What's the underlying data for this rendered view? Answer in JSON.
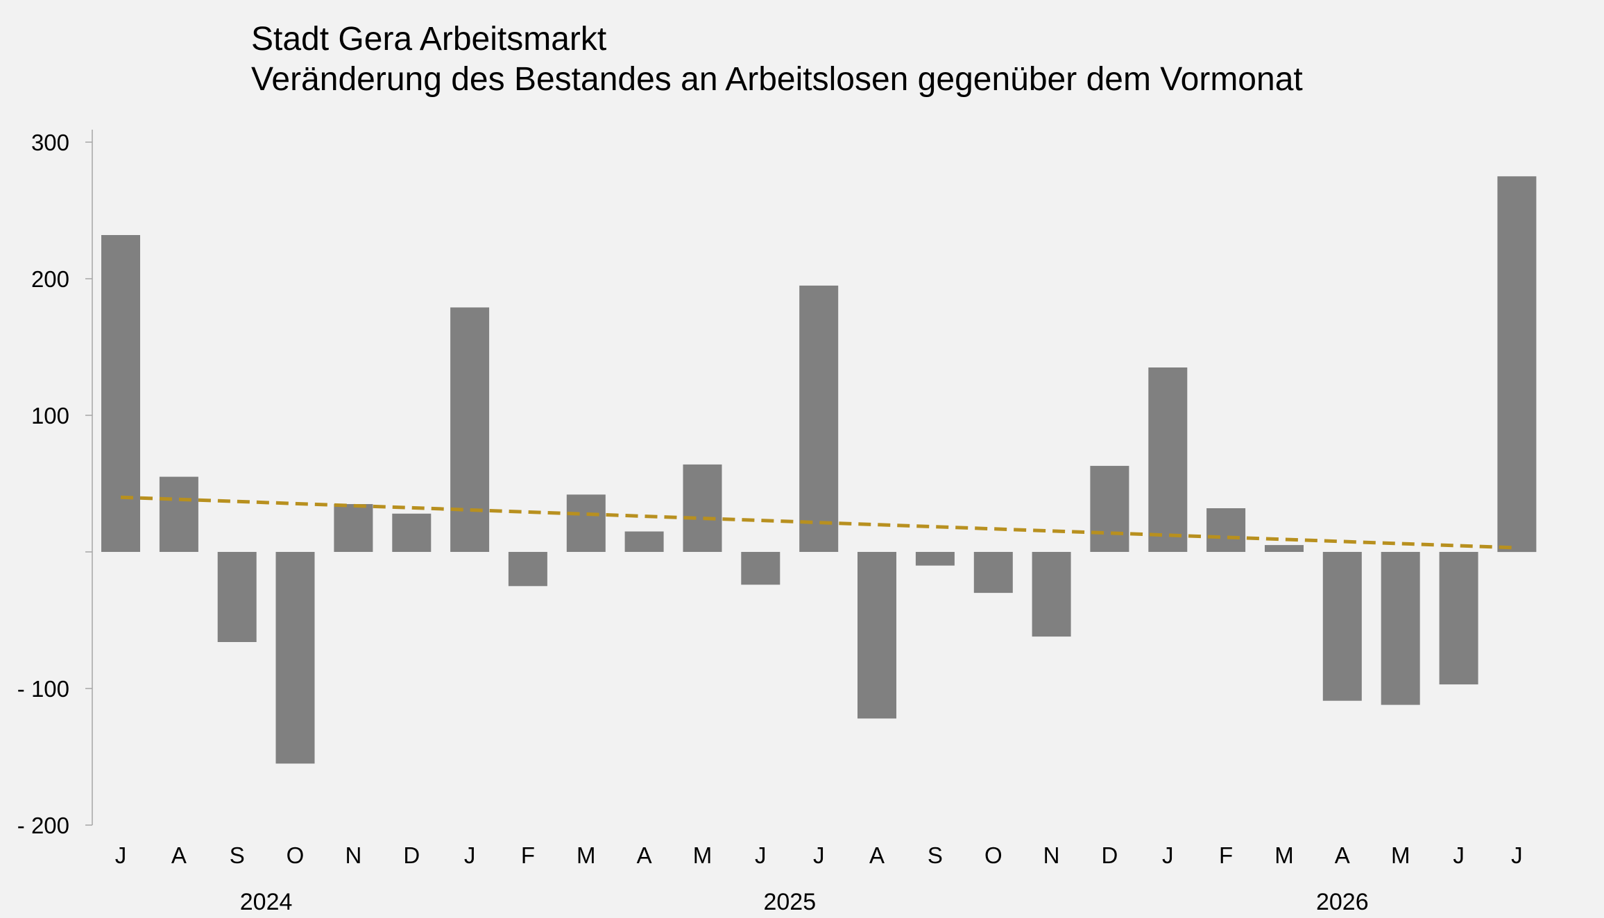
{
  "chart_data": {
    "type": "bar",
    "title": "Stadt Gera Arbeitsmarkt",
    "subtitle": "Veränderung des Bestandes an Arbeitslosen gegenüber dem Vormonat",
    "categories": [
      "J",
      "A",
      "S",
      "O",
      "N",
      "D",
      "J",
      "F",
      "M",
      "A",
      "M",
      "J",
      "J",
      "A",
      "S",
      "O",
      "N",
      "D",
      "J",
      "F",
      "M",
      "A",
      "M",
      "J",
      "J"
    ],
    "year_labels": [
      {
        "label": "2024",
        "from": 0,
        "to": 5
      },
      {
        "label": "2025",
        "from": 6,
        "to": 17
      },
      {
        "label": "2026",
        "from": 18,
        "to": 24
      }
    ],
    "series": [
      {
        "values": [
          232,
          55,
          -66,
          -155,
          35,
          28,
          179,
          -25,
          42,
          15,
          64,
          -24,
          195,
          -122,
          -10,
          -30,
          -62,
          63,
          135,
          32,
          5,
          -109,
          -112,
          -97,
          275
        ],
        "color": "#808080"
      }
    ],
    "trendline": {
      "start": 40,
      "end": 3,
      "color": "#b8901f",
      "style": "dashed"
    },
    "yticks": [
      {
        "value": 300,
        "label": "300"
      },
      {
        "value": 200,
        "label": "200"
      },
      {
        "value": 100,
        "label": "100"
      },
      {
        "value": 0,
        "label": ""
      },
      {
        "value": -100,
        "label": "-  100"
      },
      {
        "value": -200,
        "label": "-  200"
      }
    ],
    "ylim": [
      -200,
      300
    ],
    "grid": false,
    "legend": "none"
  }
}
